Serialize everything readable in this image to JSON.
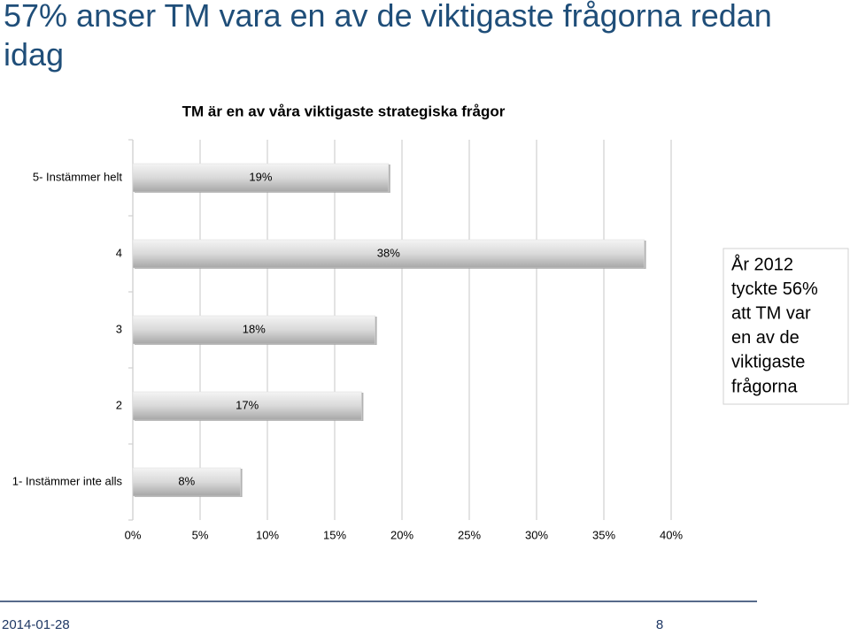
{
  "title": "57% anser TM vara en av de viktigaste frågorna redan idag",
  "chart_data": {
    "type": "hbar",
    "title": "TM är en av våra viktigaste strategiska frågor",
    "categories": [
      "5- Instämmer helt",
      "4",
      "3",
      "2",
      "1- Instämmer inte alls"
    ],
    "values": [
      19,
      38,
      18,
      17,
      8
    ],
    "value_labels": [
      "19%",
      "38%",
      "18%",
      "17%",
      "8%"
    ],
    "color": "#d9d9d9",
    "xlim": [
      0,
      40
    ],
    "xticks": [
      {
        "value": 0,
        "label": "0%"
      },
      {
        "value": 5,
        "label": "5%"
      },
      {
        "value": 10,
        "label": "10%"
      },
      {
        "value": 15,
        "label": "15%"
      },
      {
        "value": 20,
        "label": "20%"
      },
      {
        "value": 25,
        "label": "25%"
      },
      {
        "value": 30,
        "label": "30%"
      },
      {
        "value": 35,
        "label": "35%"
      },
      {
        "value": 40,
        "label": "40%"
      }
    ],
    "grid": true
  },
  "annotation": [
    "År 2012",
    "tyckte 56%",
    "att TM var",
    "en av de",
    "viktigaste",
    "frågorna"
  ],
  "footer": {
    "date": "2014-01-28",
    "page": 8
  }
}
